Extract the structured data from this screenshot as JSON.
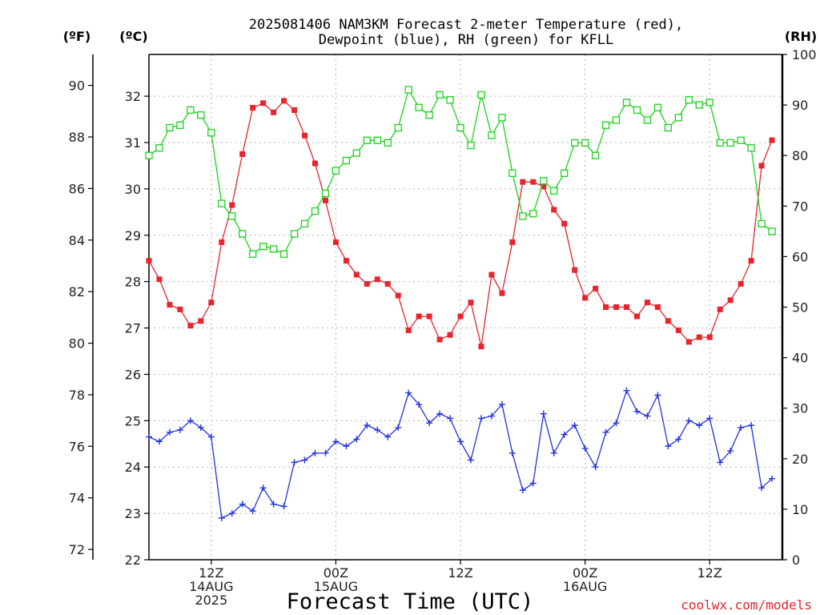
{
  "chart_data": {
    "type": "line",
    "title": "2025081406 NAM3KM Forecast 2-meter Temperature (red),",
    "title_line2": "Dewpoint (blue), RH (green) for KFLL",
    "xlabel": "Forecast Time (UTC)",
    "credit": "coolwx.com/models",
    "left_unit_f": "(ºF)",
    "left_unit_c": "(ºC)",
    "right_unit": "(RH)",
    "x_units": "forecast hour from 2025081406",
    "x_range": [
      0,
      61
    ],
    "y_c_range": [
      22,
      32.9
    ],
    "y_f_range": [
      71.6,
      91.2
    ],
    "y_rh_range": [
      0,
      100
    ],
    "grid": true,
    "c_ticks": [
      "22",
      "23",
      "24",
      "25",
      "26",
      "27",
      "28",
      "29",
      "30",
      "31",
      "32"
    ],
    "f_ticks": [
      "72",
      "74",
      "76",
      "78",
      "80",
      "82",
      "84",
      "86",
      "88",
      "90"
    ],
    "rh_ticks": [
      "0",
      "10",
      "20",
      "30",
      "40",
      "50",
      "60",
      "70",
      "80",
      "90",
      "100"
    ],
    "x_ticks": [
      {
        "hour": 6,
        "lines": [
          "12Z",
          "14AUG",
          "2025"
        ]
      },
      {
        "hour": 18,
        "lines": [
          "00Z",
          "15AUG"
        ]
      },
      {
        "hour": 30,
        "lines": [
          "12Z"
        ]
      },
      {
        "hour": 42,
        "lines": [
          "00Z",
          "16AUG"
        ]
      },
      {
        "hour": 54,
        "lines": [
          "12Z"
        ]
      }
    ],
    "colors": {
      "temperature": "#e8242d",
      "dewpoint": "#2233dd",
      "rh": "#1cd21c",
      "frame": "#000000"
    },
    "series": [
      {
        "name": "Temperature (red)",
        "unit": "C",
        "marker": "filled-square",
        "values": [
          28.45,
          28.05,
          27.5,
          27.4,
          27.05,
          27.15,
          27.55,
          28.85,
          29.65,
          30.75,
          31.75,
          31.85,
          31.65,
          31.9,
          31.7,
          31.15,
          30.55,
          29.75,
          28.85,
          28.45,
          28.15,
          27.95,
          28.05,
          27.95,
          27.7,
          26.95,
          27.25,
          27.25,
          26.75,
          26.85,
          27.25,
          27.55,
          26.6,
          28.15,
          27.75,
          28.85,
          30.15,
          30.15,
          30.05,
          29.55,
          29.25,
          28.25,
          27.65,
          27.85,
          27.45,
          27.45,
          27.45,
          27.25,
          27.55,
          27.45,
          27.15,
          26.95,
          26.7,
          26.8,
          26.8,
          27.4,
          27.6,
          27.95,
          28.45,
          30.5,
          31.05
        ]
      },
      {
        "name": "Dewpoint (blue)",
        "unit": "C",
        "marker": "plus",
        "values": [
          24.65,
          24.55,
          24.75,
          24.8,
          25.0,
          24.85,
          24.65,
          22.9,
          23.0,
          23.2,
          23.05,
          23.55,
          23.2,
          23.15,
          24.1,
          24.15,
          24.3,
          24.3,
          24.55,
          24.45,
          24.6,
          24.9,
          24.8,
          24.65,
          24.85,
          25.6,
          25.35,
          24.95,
          25.15,
          25.05,
          24.55,
          24.15,
          25.05,
          25.1,
          25.35,
          24.3,
          23.5,
          23.65,
          25.15,
          24.3,
          24.7,
          24.9,
          24.4,
          24.0,
          24.75,
          24.95,
          25.65,
          25.2,
          25.1,
          25.55,
          24.45,
          24.6,
          25.0,
          24.9,
          25.05,
          24.1,
          24.35,
          24.85,
          24.9,
          23.55,
          23.75
        ]
      },
      {
        "name": "RH (green)",
        "unit": "%",
        "marker": "open-square",
        "values": [
          80,
          81.5,
          85.5,
          86,
          89,
          88,
          84.5,
          70.5,
          68,
          64.5,
          60.5,
          62,
          61.5,
          60.5,
          64.5,
          66.5,
          69,
          72.5,
          77,
          79,
          80.5,
          83,
          83,
          82.5,
          85.5,
          93,
          89.5,
          88,
          92,
          91,
          85.5,
          82,
          92,
          84,
          87.5,
          76.5,
          68,
          68.5,
          75,
          73,
          76.5,
          82.5,
          82.5,
          80,
          86,
          87,
          90.5,
          89,
          87,
          89.5,
          85.5,
          87.5,
          91,
          90,
          90.5,
          82.5,
          82.5,
          83,
          81.5,
          66.5,
          65
        ]
      }
    ]
  }
}
